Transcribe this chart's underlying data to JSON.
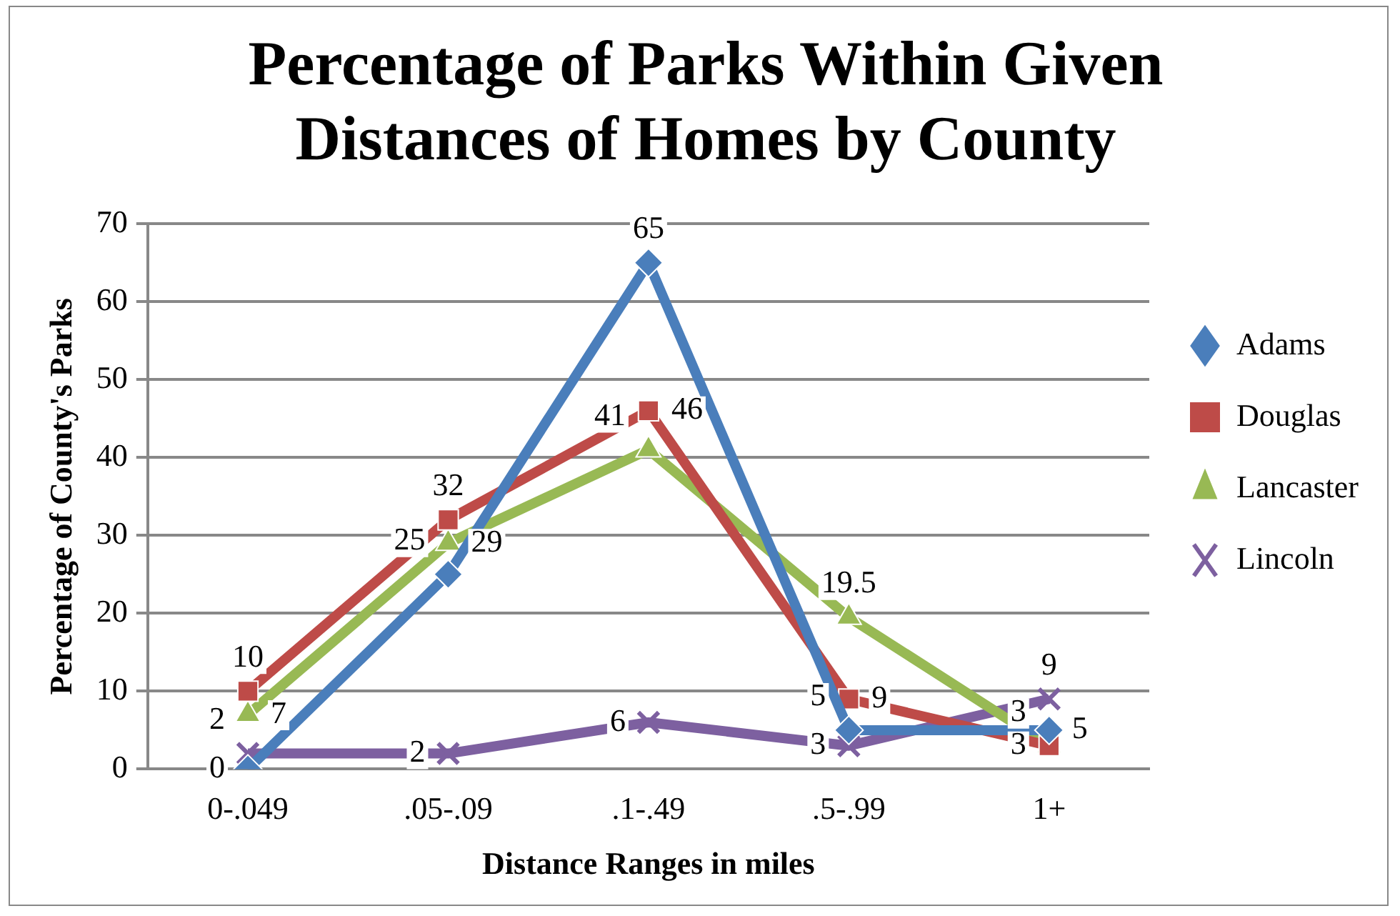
{
  "chart_data": {
    "type": "line",
    "title": "Percentage of Parks Within Given Distances of Homes by County",
    "xlabel": "Distance Ranges in miles",
    "ylabel": "Percentage of County's Parks",
    "categories": [
      "0-.049",
      ".05-.09",
      ".1-.49",
      ".5-.99",
      "1+"
    ],
    "series": [
      {
        "name": "Adams",
        "color": "#4a7ebb",
        "marker": "diamond",
        "values": [
          0,
          25,
          65,
          5,
          5
        ]
      },
      {
        "name": "Douglas",
        "color": "#be4b48",
        "marker": "square",
        "values": [
          10,
          32,
          46,
          9,
          3
        ]
      },
      {
        "name": "Lancaster",
        "color": "#98b954",
        "marker": "triangle",
        "values": [
          7,
          29,
          41,
          19.5,
          3
        ]
      },
      {
        "name": "Lincoln",
        "color": "#7d60a0",
        "marker": "cross",
        "values": [
          2,
          2,
          6,
          3,
          9
        ]
      }
    ],
    "ylim": [
      0,
      70
    ],
    "yticks": [
      0,
      10,
      20,
      30,
      40,
      50,
      60,
      70
    ],
    "grid": "y",
    "legend": "right",
    "data_labels": true,
    "line_style": "solid"
  }
}
